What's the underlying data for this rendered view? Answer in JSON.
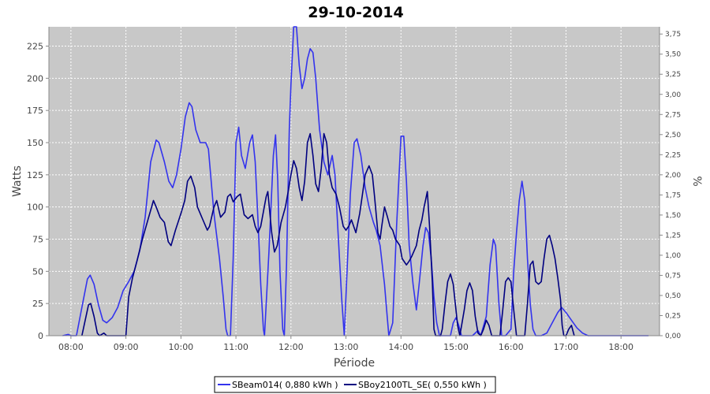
{
  "chart_data": {
    "type": "line",
    "title": "29-10-2014",
    "xlabel": "Période",
    "ylabel": "Watts",
    "y2label": "%",
    "xlim": [
      7.6,
      18.7
    ],
    "ylim": [
      0,
      240
    ],
    "y2lim": [
      0,
      3.84
    ],
    "x_tick_labels": [
      "08:00",
      "09:00",
      "10:00",
      "11:00",
      "12:00",
      "13:00",
      "14:00",
      "15:00",
      "16:00",
      "17:00",
      "18:00"
    ],
    "y_ticks": [
      0,
      25,
      50,
      75,
      100,
      125,
      150,
      175,
      200,
      225
    ],
    "y2_tick_labels": [
      "0,00",
      "0,25",
      "0,50",
      "0,75",
      "1,00",
      "1,25",
      "1,50",
      "1,75",
      "2,00",
      "2,25",
      "2,50",
      "2,75",
      "3,00",
      "3,25",
      "3,50",
      "3,75"
    ],
    "grid": true,
    "legend_position": "bottom",
    "series": [
      {
        "name": "SBeam014( 0,880 kWh )",
        "color": "#3333ee",
        "points": [
          [
            7.85,
            0
          ],
          [
            7.95,
            1
          ],
          [
            8.0,
            0
          ],
          [
            8.1,
            0
          ],
          [
            8.2,
            22
          ],
          [
            8.3,
            44
          ],
          [
            8.35,
            47
          ],
          [
            8.42,
            40
          ],
          [
            8.5,
            24
          ],
          [
            8.58,
            12
          ],
          [
            8.65,
            10
          ],
          [
            8.75,
            14
          ],
          [
            8.85,
            22
          ],
          [
            8.95,
            35
          ],
          [
            9.05,
            42
          ],
          [
            9.15,
            50
          ],
          [
            9.25,
            66
          ],
          [
            9.35,
            92
          ],
          [
            9.45,
            135
          ],
          [
            9.55,
            152
          ],
          [
            9.6,
            150
          ],
          [
            9.7,
            135
          ],
          [
            9.78,
            120
          ],
          [
            9.85,
            115
          ],
          [
            9.92,
            125
          ],
          [
            10.0,
            145
          ],
          [
            10.08,
            170
          ],
          [
            10.15,
            181
          ],
          [
            10.2,
            178
          ],
          [
            10.27,
            160
          ],
          [
            10.35,
            150
          ],
          [
            10.45,
            150
          ],
          [
            10.5,
            145
          ],
          [
            10.6,
            95
          ],
          [
            10.7,
            60
          ],
          [
            10.77,
            30
          ],
          [
            10.82,
            5
          ],
          [
            10.85,
            0
          ],
          [
            10.9,
            0
          ],
          [
            10.95,
            60
          ],
          [
            11.0,
            150
          ],
          [
            11.05,
            162
          ],
          [
            11.1,
            140
          ],
          [
            11.17,
            130
          ],
          [
            11.25,
            150
          ],
          [
            11.3,
            156
          ],
          [
            11.35,
            135
          ],
          [
            11.4,
            90
          ],
          [
            11.45,
            40
          ],
          [
            11.5,
            5
          ],
          [
            11.52,
            0
          ],
          [
            11.6,
            65
          ],
          [
            11.68,
            140
          ],
          [
            11.72,
            156
          ],
          [
            11.76,
            120
          ],
          [
            11.8,
            50
          ],
          [
            11.85,
            5
          ],
          [
            11.88,
            0
          ],
          [
            11.92,
            55
          ],
          [
            11.97,
            160
          ],
          [
            12.0,
            195
          ],
          [
            12.05,
            240
          ],
          [
            12.1,
            240
          ],
          [
            12.15,
            210
          ],
          [
            12.2,
            192
          ],
          [
            12.25,
            200
          ],
          [
            12.3,
            215
          ],
          [
            12.35,
            223
          ],
          [
            12.4,
            220
          ],
          [
            12.45,
            200
          ],
          [
            12.52,
            160
          ],
          [
            12.6,
            135
          ],
          [
            12.67,
            125
          ],
          [
            12.75,
            140
          ],
          [
            12.8,
            125
          ],
          [
            12.85,
            85
          ],
          [
            12.92,
            30
          ],
          [
            12.97,
            0
          ],
          [
            13.02,
            50
          ],
          [
            13.08,
            110
          ],
          [
            13.15,
            150
          ],
          [
            13.2,
            153
          ],
          [
            13.27,
            140
          ],
          [
            13.35,
            115
          ],
          [
            13.42,
            100
          ],
          [
            13.5,
            88
          ],
          [
            13.55,
            82
          ],
          [
            13.62,
            70
          ],
          [
            13.7,
            40
          ],
          [
            13.75,
            15
          ],
          [
            13.78,
            0
          ],
          [
            13.85,
            10
          ],
          [
            13.92,
            85
          ],
          [
            14.0,
            155
          ],
          [
            14.05,
            155
          ],
          [
            14.1,
            120
          ],
          [
            14.15,
            70
          ],
          [
            14.22,
            40
          ],
          [
            14.28,
            20
          ],
          [
            14.33,
            40
          ],
          [
            14.4,
            70
          ],
          [
            14.45,
            84
          ],
          [
            14.5,
            80
          ],
          [
            14.55,
            60
          ],
          [
            14.6,
            30
          ],
          [
            14.65,
            10
          ],
          [
            14.7,
            0
          ],
          [
            14.9,
            0
          ],
          [
            14.95,
            10
          ],
          [
            15.0,
            14
          ],
          [
            15.05,
            8
          ],
          [
            15.1,
            0
          ],
          [
            15.3,
            0
          ],
          [
            15.4,
            4
          ],
          [
            15.45,
            0
          ],
          [
            15.55,
            15
          ],
          [
            15.62,
            55
          ],
          [
            15.68,
            75
          ],
          [
            15.72,
            70
          ],
          [
            15.78,
            25
          ],
          [
            15.83,
            0
          ],
          [
            15.9,
            0
          ],
          [
            16.0,
            5
          ],
          [
            16.05,
            50
          ],
          [
            16.1,
            80
          ],
          [
            16.15,
            105
          ],
          [
            16.2,
            120
          ],
          [
            16.25,
            105
          ],
          [
            16.3,
            60
          ],
          [
            16.35,
            25
          ],
          [
            16.4,
            5
          ],
          [
            16.45,
            0
          ],
          [
            16.55,
            0
          ],
          [
            16.65,
            2
          ],
          [
            16.75,
            10
          ],
          [
            16.85,
            18
          ],
          [
            16.92,
            22
          ],
          [
            17.0,
            18
          ],
          [
            17.1,
            12
          ],
          [
            17.2,
            6
          ],
          [
            17.3,
            2
          ],
          [
            17.4,
            0
          ],
          [
            18.5,
            0
          ]
        ]
      },
      {
        "name": "SBoy2100TL_SE( 0,550 kWh )",
        "color": "#000080",
        "points": [
          [
            8.2,
            0
          ],
          [
            8.25,
            10
          ],
          [
            8.32,
            24
          ],
          [
            8.36,
            25
          ],
          [
            8.42,
            15
          ],
          [
            8.48,
            2
          ],
          [
            8.52,
            0
          ],
          [
            8.6,
            2
          ],
          [
            8.65,
            0
          ],
          [
            8.9,
            0
          ],
          [
            9.0,
            0
          ],
          [
            9.05,
            30
          ],
          [
            9.12,
            45
          ],
          [
            9.2,
            58
          ],
          [
            9.3,
            75
          ],
          [
            9.4,
            90
          ],
          [
            9.5,
            105
          ],
          [
            9.55,
            100
          ],
          [
            9.62,
            92
          ],
          [
            9.7,
            88
          ],
          [
            9.77,
            73
          ],
          [
            9.82,
            70
          ],
          [
            9.9,
            82
          ],
          [
            10.0,
            95
          ],
          [
            10.07,
            105
          ],
          [
            10.12,
            120
          ],
          [
            10.18,
            124
          ],
          [
            10.25,
            115
          ],
          [
            10.3,
            100
          ],
          [
            10.4,
            90
          ],
          [
            10.48,
            82
          ],
          [
            10.52,
            85
          ],
          [
            10.6,
            100
          ],
          [
            10.65,
            105
          ],
          [
            10.72,
            92
          ],
          [
            10.8,
            96
          ],
          [
            10.85,
            108
          ],
          [
            10.9,
            110
          ],
          [
            10.95,
            104
          ],
          [
            11.02,
            108
          ],
          [
            11.08,
            110
          ],
          [
            11.15,
            94
          ],
          [
            11.22,
            91
          ],
          [
            11.3,
            94
          ],
          [
            11.35,
            85
          ],
          [
            11.4,
            80
          ],
          [
            11.45,
            85
          ],
          [
            11.55,
            108
          ],
          [
            11.58,
            112
          ],
          [
            11.65,
            80
          ],
          [
            11.7,
            65
          ],
          [
            11.75,
            70
          ],
          [
            11.82,
            88
          ],
          [
            11.9,
            100
          ],
          [
            11.95,
            112
          ],
          [
            12.0,
            125
          ],
          [
            12.05,
            136
          ],
          [
            12.1,
            130
          ],
          [
            12.15,
            115
          ],
          [
            12.2,
            105
          ],
          [
            12.25,
            120
          ],
          [
            12.3,
            150
          ],
          [
            12.35,
            157
          ],
          [
            12.4,
            140
          ],
          [
            12.45,
            118
          ],
          [
            12.5,
            112
          ],
          [
            12.55,
            130
          ],
          [
            12.6,
            157
          ],
          [
            12.65,
            150
          ],
          [
            12.7,
            125
          ],
          [
            12.75,
            115
          ],
          [
            12.82,
            110
          ],
          [
            12.88,
            100
          ],
          [
            12.95,
            85
          ],
          [
            13.0,
            82
          ],
          [
            13.05,
            85
          ],
          [
            13.1,
            90
          ],
          [
            13.18,
            80
          ],
          [
            13.25,
            95
          ],
          [
            13.3,
            110
          ],
          [
            13.35,
            125
          ],
          [
            13.42,
            132
          ],
          [
            13.48,
            125
          ],
          [
            13.52,
            108
          ],
          [
            13.58,
            80
          ],
          [
            13.62,
            75
          ],
          [
            13.65,
            85
          ],
          [
            13.7,
            100
          ],
          [
            13.75,
            93
          ],
          [
            13.8,
            85
          ],
          [
            13.85,
            82
          ],
          [
            13.9,
            75
          ],
          [
            13.98,
            70
          ],
          [
            14.02,
            60
          ],
          [
            14.1,
            55
          ],
          [
            14.15,
            58
          ],
          [
            14.2,
            62
          ],
          [
            14.28,
            70
          ],
          [
            14.33,
            82
          ],
          [
            14.38,
            90
          ],
          [
            14.42,
            100
          ],
          [
            14.48,
            112
          ],
          [
            14.52,
            85
          ],
          [
            14.57,
            42
          ],
          [
            14.6,
            5
          ],
          [
            14.63,
            0
          ],
          [
            14.72,
            0
          ],
          [
            14.75,
            5
          ],
          [
            14.8,
            25
          ],
          [
            14.85,
            42
          ],
          [
            14.9,
            48
          ],
          [
            14.95,
            40
          ],
          [
            15.0,
            20
          ],
          [
            15.03,
            8
          ],
          [
            15.07,
            0
          ],
          [
            15.15,
            20
          ],
          [
            15.2,
            35
          ],
          [
            15.25,
            41
          ],
          [
            15.3,
            35
          ],
          [
            15.35,
            15
          ],
          [
            15.4,
            2
          ],
          [
            15.45,
            0
          ],
          [
            15.5,
            5
          ],
          [
            15.55,
            12
          ],
          [
            15.6,
            8
          ],
          [
            15.65,
            0
          ],
          [
            15.8,
            0
          ],
          [
            15.85,
            20
          ],
          [
            15.9,
            42
          ],
          [
            15.95,
            45
          ],
          [
            16.0,
            42
          ],
          [
            16.05,
            20
          ],
          [
            16.1,
            0
          ],
          [
            16.25,
            0
          ],
          [
            16.3,
            25
          ],
          [
            16.35,
            55
          ],
          [
            16.4,
            58
          ],
          [
            16.45,
            42
          ],
          [
            16.5,
            40
          ],
          [
            16.55,
            42
          ],
          [
            16.6,
            60
          ],
          [
            16.65,
            75
          ],
          [
            16.7,
            78
          ],
          [
            16.75,
            70
          ],
          [
            16.8,
            60
          ],
          [
            16.85,
            45
          ],
          [
            16.9,
            28
          ],
          [
            16.93,
            8
          ],
          [
            16.96,
            0
          ],
          [
            17.0,
            0
          ],
          [
            17.05,
            5
          ],
          [
            17.1,
            8
          ],
          [
            17.15,
            0
          ]
        ]
      }
    ]
  }
}
